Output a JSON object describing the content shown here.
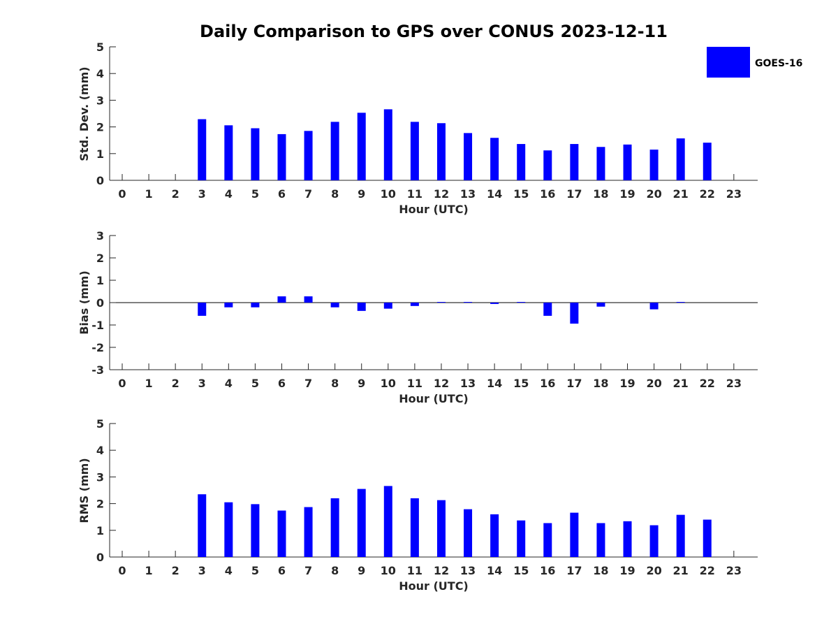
{
  "title": "Daily Comparison to GPS over CONUS 2023-12-11",
  "colors": {
    "bar": "#0000ff",
    "axis": "#262626",
    "text": "#000000"
  },
  "legend": {
    "label": "GOES-16",
    "placement": "top-right"
  },
  "chart_data": [
    {
      "type": "bar",
      "xlabel": "Hour (UTC)",
      "ylabel": "Std. Dev. (mm)",
      "categories": [
        "0",
        "1",
        "2",
        "3",
        "4",
        "5",
        "6",
        "7",
        "8",
        "9",
        "10",
        "11",
        "12",
        "13",
        "14",
        "15",
        "16",
        "17",
        "18",
        "19",
        "20",
        "21",
        "22",
        "23"
      ],
      "ylim": [
        0,
        5
      ],
      "yticks": [
        "0",
        "1",
        "2",
        "3",
        "4",
        "5"
      ],
      "grid": false,
      "series": [
        {
          "name": "GOES-16",
          "values": [
            null,
            null,
            null,
            2.29,
            2.06,
            1.95,
            1.73,
            1.85,
            2.19,
            2.53,
            2.66,
            2.19,
            2.14,
            1.77,
            1.59,
            1.36,
            1.12,
            1.36,
            1.25,
            1.34,
            1.15,
            1.57,
            1.41,
            null
          ]
        }
      ]
    },
    {
      "type": "bar",
      "xlabel": "Hour (UTC)",
      "ylabel": "Bias (mm)",
      "categories": [
        "0",
        "1",
        "2",
        "3",
        "4",
        "5",
        "6",
        "7",
        "8",
        "9",
        "10",
        "11",
        "12",
        "13",
        "14",
        "15",
        "16",
        "17",
        "18",
        "19",
        "20",
        "21",
        "22",
        "23"
      ],
      "ylim": [
        -3,
        3
      ],
      "yticks": [
        "-3",
        "-2",
        "-1",
        "0",
        "1",
        "2",
        "3"
      ],
      "grid": false,
      "series": [
        {
          "name": "GOES-16",
          "values": [
            null,
            null,
            null,
            -0.59,
            -0.21,
            -0.21,
            0.28,
            0.28,
            -0.21,
            -0.37,
            -0.27,
            -0.15,
            0.03,
            0.03,
            -0.06,
            0.03,
            -0.59,
            -0.94,
            -0.18,
            null,
            -0.3,
            0.03,
            null,
            null
          ]
        }
      ]
    },
    {
      "type": "bar",
      "xlabel": "Hour (UTC)",
      "ylabel": "RMS (mm)",
      "categories": [
        "0",
        "1",
        "2",
        "3",
        "4",
        "5",
        "6",
        "7",
        "8",
        "9",
        "10",
        "11",
        "12",
        "13",
        "14",
        "15",
        "16",
        "17",
        "18",
        "19",
        "20",
        "21",
        "22",
        "23"
      ],
      "ylim": [
        0,
        5
      ],
      "yticks": [
        "0",
        "1",
        "2",
        "3",
        "4",
        "5"
      ],
      "grid": false,
      "series": [
        {
          "name": "GOES-16",
          "values": [
            null,
            null,
            null,
            2.35,
            2.05,
            1.98,
            1.74,
            1.87,
            2.2,
            2.55,
            2.66,
            2.2,
            2.13,
            1.79,
            1.6,
            1.37,
            1.27,
            1.66,
            1.27,
            1.34,
            1.19,
            1.58,
            1.4,
            null
          ]
        }
      ]
    }
  ]
}
